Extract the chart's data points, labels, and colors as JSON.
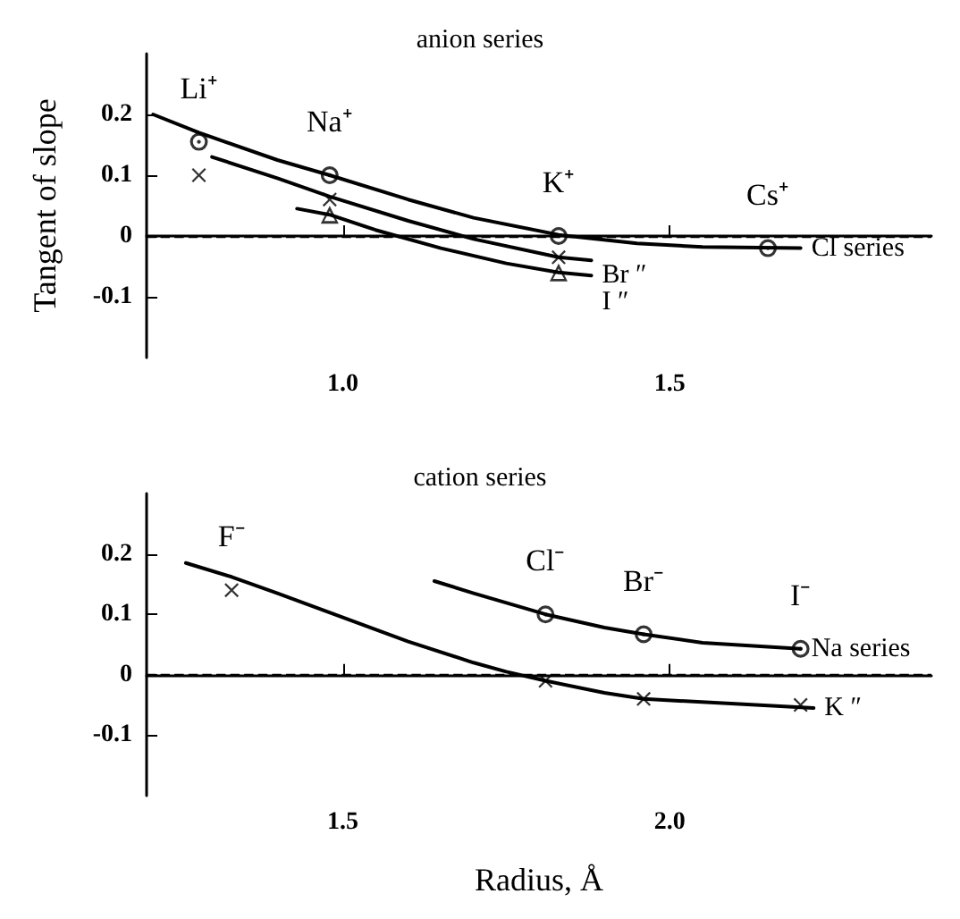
{
  "chart_data": [
    {
      "type": "line",
      "title": "anion series",
      "ylabel": "Tangent of slope",
      "xlim": [
        0.7,
        1.9
      ],
      "ylim": [
        -0.2,
        0.3
      ],
      "xticks": [
        {
          "value": 1,
          "label": "1.0"
        },
        1.5
      ],
      "yticks": [
        -0.1,
        0,
        0.1,
        0.2
      ],
      "ref_lines": [
        {
          "axis": "y",
          "value": 0,
          "line_style": "dashed"
        }
      ],
      "annotations": [
        {
          "text": "Li⁺",
          "x": 0.78,
          "y": 0.155
        },
        {
          "text": "Na⁺",
          "x": 0.98,
          "y": 0.1
        },
        {
          "text": "K⁺",
          "x": 1.33,
          "y": 0.0
        },
        {
          "text": "Cs⁺",
          "x": 1.65,
          "y": -0.02
        }
      ],
      "series": [
        {
          "type": "scatter",
          "marker": "circle",
          "color": "#000000",
          "x": [
            0.78,
            0.98,
            1.33,
            1.65
          ],
          "values": [
            0.155,
            0.1,
            0.0,
            -0.02
          ]
        },
        {
          "type": "scatter",
          "marker": "cross",
          "color": "#000000",
          "x": [
            0.78,
            0.98,
            1.33
          ],
          "values": [
            0.1,
            0.06,
            -0.035
          ]
        },
        {
          "type": "scatter",
          "marker": "triangle",
          "color": "#000000",
          "x": [
            0.98,
            1.33
          ],
          "values": [
            0.035,
            -0.06
          ]
        },
        {
          "type": "line",
          "name": "Cl series",
          "color": "#000000",
          "x": [
            0.71,
            0.78,
            0.9,
            0.98,
            1.1,
            1.2,
            1.33,
            1.45,
            1.55,
            1.7
          ],
          "values": [
            0.2,
            0.17,
            0.125,
            0.1,
            0.06,
            0.03,
            0.002,
            -0.012,
            -0.018,
            -0.02
          ]
        },
        {
          "type": "line",
          "name": "Br ″",
          "color": "#000000",
          "x": [
            0.8,
            0.9,
            0.98,
            1.1,
            1.2,
            1.33,
            1.38
          ],
          "values": [
            0.13,
            0.095,
            0.065,
            0.025,
            -0.005,
            -0.035,
            -0.04
          ]
        },
        {
          "type": "line",
          "name": "I ″",
          "color": "#000000",
          "x": [
            0.93,
            0.98,
            1.05,
            1.15,
            1.25,
            1.33,
            1.38
          ],
          "values": [
            0.045,
            0.035,
            0.01,
            -0.02,
            -0.045,
            -0.06,
            -0.065
          ]
        }
      ]
    },
    {
      "type": "line",
      "title": "cation series",
      "xlabel": "Radius, Å",
      "xlim": [
        1.2,
        2.4
      ],
      "ylim": [
        -0.2,
        0.3
      ],
      "xticks": [
        1.5,
        {
          "value": 2,
          "label": "2.0"
        }
      ],
      "yticks": [
        -0.1,
        0,
        0.1,
        0.2
      ],
      "ref_lines": [
        {
          "axis": "y",
          "value": 0,
          "line_style": "dashed"
        }
      ],
      "annotations": [
        {
          "text": "F⁻",
          "x": 1.33,
          "y": 0.14
        },
        {
          "text": "Cl⁻",
          "x": 1.81,
          "y": 0.1
        },
        {
          "text": "Br⁻",
          "x": 1.96,
          "y": 0.067
        },
        {
          "text": "I⁻",
          "x": 2.2,
          "y": 0.043
        }
      ],
      "series": [
        {
          "type": "scatter",
          "marker": "circle",
          "color": "#000000",
          "x": [
            1.81,
            1.96,
            2.2
          ],
          "values": [
            0.1,
            0.067,
            0.043
          ]
        },
        {
          "type": "scatter",
          "marker": "cross",
          "color": "#000000",
          "x": [
            1.33,
            1.81,
            1.96,
            2.2
          ],
          "values": [
            0.14,
            -0.01,
            -0.04,
            -0.05
          ]
        },
        {
          "type": "line",
          "name": "Na series",
          "color": "#000000",
          "x": [
            1.64,
            1.7,
            1.81,
            1.9,
            1.96,
            2.05,
            2.2
          ],
          "values": [
            0.155,
            0.135,
            0.1,
            0.078,
            0.067,
            0.053,
            0.043
          ]
        },
        {
          "type": "line",
          "name": "K ″",
          "color": "#000000",
          "x": [
            1.26,
            1.33,
            1.4,
            1.5,
            1.6,
            1.7,
            1.75,
            1.81,
            1.9,
            1.96,
            2.1,
            2.22
          ],
          "values": [
            0.185,
            0.162,
            0.135,
            0.095,
            0.055,
            0.02,
            0.005,
            -0.01,
            -0.03,
            -0.04,
            -0.048,
            -0.055
          ]
        }
      ]
    }
  ]
}
